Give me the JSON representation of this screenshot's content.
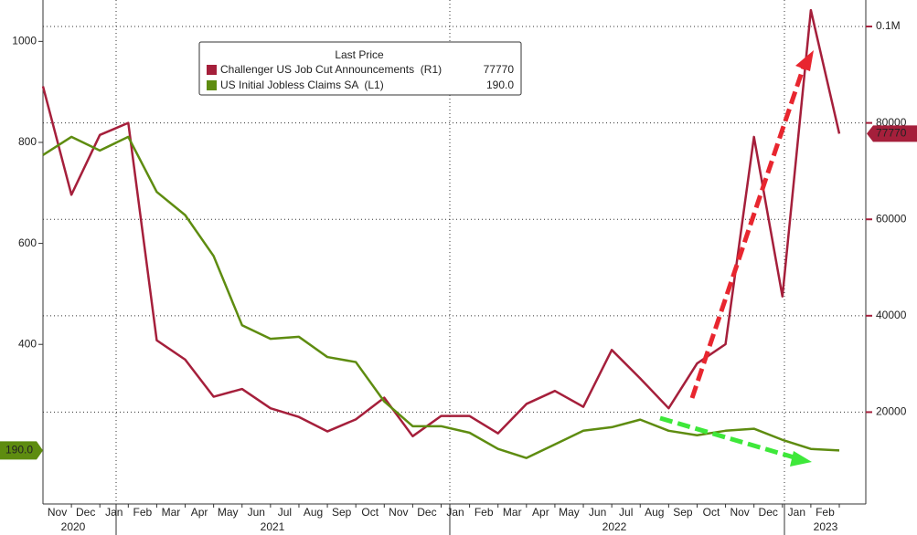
{
  "chart_data": {
    "type": "line",
    "legend_title": "Last Price",
    "categories": [
      null,
      "Nov",
      "Dec",
      "Jan",
      "Feb",
      "Mar",
      "Apr",
      "May",
      "Jun",
      "Jul",
      "Aug",
      "Sep",
      "Oct",
      "Nov",
      "Dec",
      "Jan",
      "Feb",
      "Mar",
      "Apr",
      "May",
      "Jun",
      "Jul",
      "Aug",
      "Sep",
      "Oct",
      "Nov",
      "Dec",
      "Jan",
      "Feb"
    ],
    "years": [
      "2020",
      "2021",
      "2022",
      "2023"
    ],
    "series": [
      {
        "name": "Challenger US Job Cut Announcements  (R1)",
        "color": "#a51f3b",
        "axis": "y2",
        "last_label": "77770",
        "values": [
          87600,
          65100,
          77500,
          80000,
          34900,
          30900,
          23200,
          24800,
          20800,
          19000,
          16000,
          18500,
          23000,
          15000,
          19200,
          19200,
          15600,
          21700,
          24400,
          21100,
          32900,
          27000,
          20800,
          30100,
          34100,
          77100,
          44000,
          103400,
          77770
        ]
      },
      {
        "name": "US Initial Jobless Claims SA  (L1)",
        "color": "#5e8c10",
        "last_label": "190.0",
        "values": [
          775,
          811,
          784,
          811,
          702,
          656,
          575,
          438,
          411,
          415,
          375,
          365,
          287,
          238,
          238,
          225,
          193,
          175,
          202,
          229,
          236,
          251,
          229,
          220,
          229,
          233,
          211,
          193,
          190
        ]
      }
    ],
    "ylim": [
      84,
      1082
    ],
    "yticks": [
      400,
      600,
      800,
      1000
    ],
    "y2lim": [
      950,
      105500
    ],
    "y2ticks": [
      20000,
      40000,
      60000,
      80000,
      {
        "value": 100000,
        "label": "0.1M"
      }
    ],
    "grid": true
  }
}
